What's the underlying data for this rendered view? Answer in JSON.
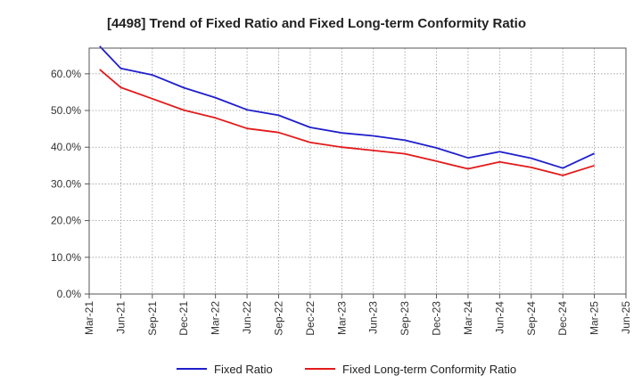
{
  "chart_data": {
    "type": "line",
    "title": "[4498]  Trend of Fixed Ratio and Fixed Long-term Conformity Ratio",
    "xlabel": "",
    "ylabel": "",
    "x_ticks": [
      "Mar-21",
      "Jun-21",
      "Sep-21",
      "Dec-21",
      "Mar-22",
      "Jun-22",
      "Sep-22",
      "Dec-22",
      "Mar-23",
      "Jun-23",
      "Sep-23",
      "Dec-23",
      "Mar-24",
      "Jun-24",
      "Sep-24",
      "Dec-24",
      "Mar-25",
      "Jun-25"
    ],
    "y_ticks": [
      "0.0%",
      "10.0%",
      "20.0%",
      "30.0%",
      "40.0%",
      "50.0%",
      "60.0%"
    ],
    "ylim": [
      0,
      0.67
    ],
    "grid": true,
    "legend_position": "bottom",
    "x": [
      "2021-04",
      "2021-06",
      "2021-09",
      "2021-12",
      "2022-03",
      "2022-06",
      "2022-09",
      "2022-12",
      "2023-03",
      "2023-06",
      "2023-09",
      "2023-12",
      "2024-03",
      "2024-06",
      "2024-09",
      "2024-12",
      "2025-03"
    ],
    "series": [
      {
        "name": "Fixed Ratio",
        "color": "#1f1fcc",
        "values": [
          0.675,
          0.615,
          0.597,
          0.562,
          0.535,
          0.502,
          0.487,
          0.454,
          0.439,
          0.431,
          0.419,
          0.398,
          0.371,
          0.388,
          0.37,
          0.343,
          0.383
        ]
      },
      {
        "name": "Fixed Long-term Conformity Ratio",
        "color": "#e31a1a",
        "values": [
          0.612,
          0.563,
          0.532,
          0.501,
          0.48,
          0.451,
          0.44,
          0.413,
          0.4,
          0.391,
          0.382,
          0.362,
          0.341,
          0.36,
          0.345,
          0.323,
          0.35
        ]
      }
    ]
  }
}
